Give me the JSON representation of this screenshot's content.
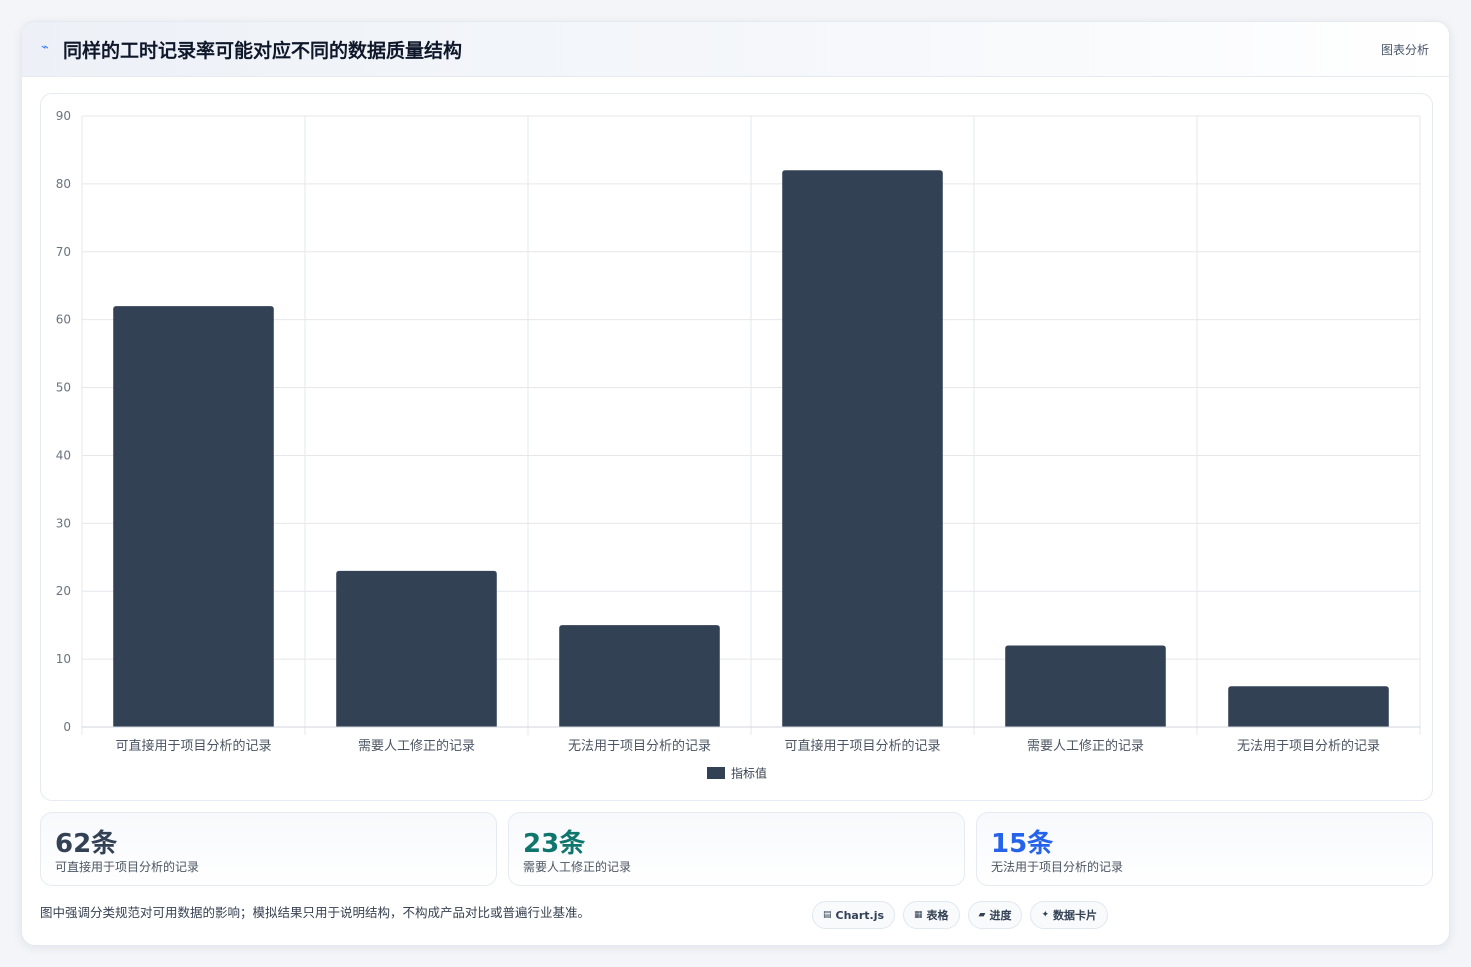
{
  "header": {
    "icon": "⌁",
    "title": "同样的工时记录率可能对应不同的数据质量结构",
    "tag": "图表分析"
  },
  "chart_data": {
    "type": "bar",
    "categories": [
      "可直接用于项目分析的记录",
      "需要人工修正的记录",
      "无法用于项目分析的记录",
      "可直接用于项目分析的记录",
      "需要人工修正的记录",
      "无法用于项目分析的记录"
    ],
    "series": [
      {
        "name": "指标值",
        "values": [
          62,
          23,
          15,
          82,
          12,
          6
        ]
      }
    ],
    "ylim": [
      0,
      90
    ],
    "yticks": [
      0,
      10,
      20,
      30,
      40,
      50,
      60,
      70,
      80,
      90
    ],
    "grid": true,
    "legend": "bottom-center",
    "bar_color": "#334155"
  },
  "stats": [
    {
      "value": "62条",
      "label": "可直接用于项目分析的记录",
      "color": "#334155"
    },
    {
      "value": "23条",
      "label": "需要人工修正的记录",
      "color": "#0f766e"
    },
    {
      "value": "15条",
      "label": "无法用于项目分析的记录",
      "color": "#2563eb"
    }
  ],
  "footnote": "图中强调分类规范对可用数据的影响；模拟结果只用于说明结构，不构成产品对比或普遍行业基准。",
  "chips": [
    {
      "icon": "▤",
      "label": "Chart.js"
    },
    {
      "icon": "▦",
      "label": "表格"
    },
    {
      "icon": "▰",
      "label": "进度"
    },
    {
      "icon": "✦",
      "label": "数据卡片"
    }
  ]
}
